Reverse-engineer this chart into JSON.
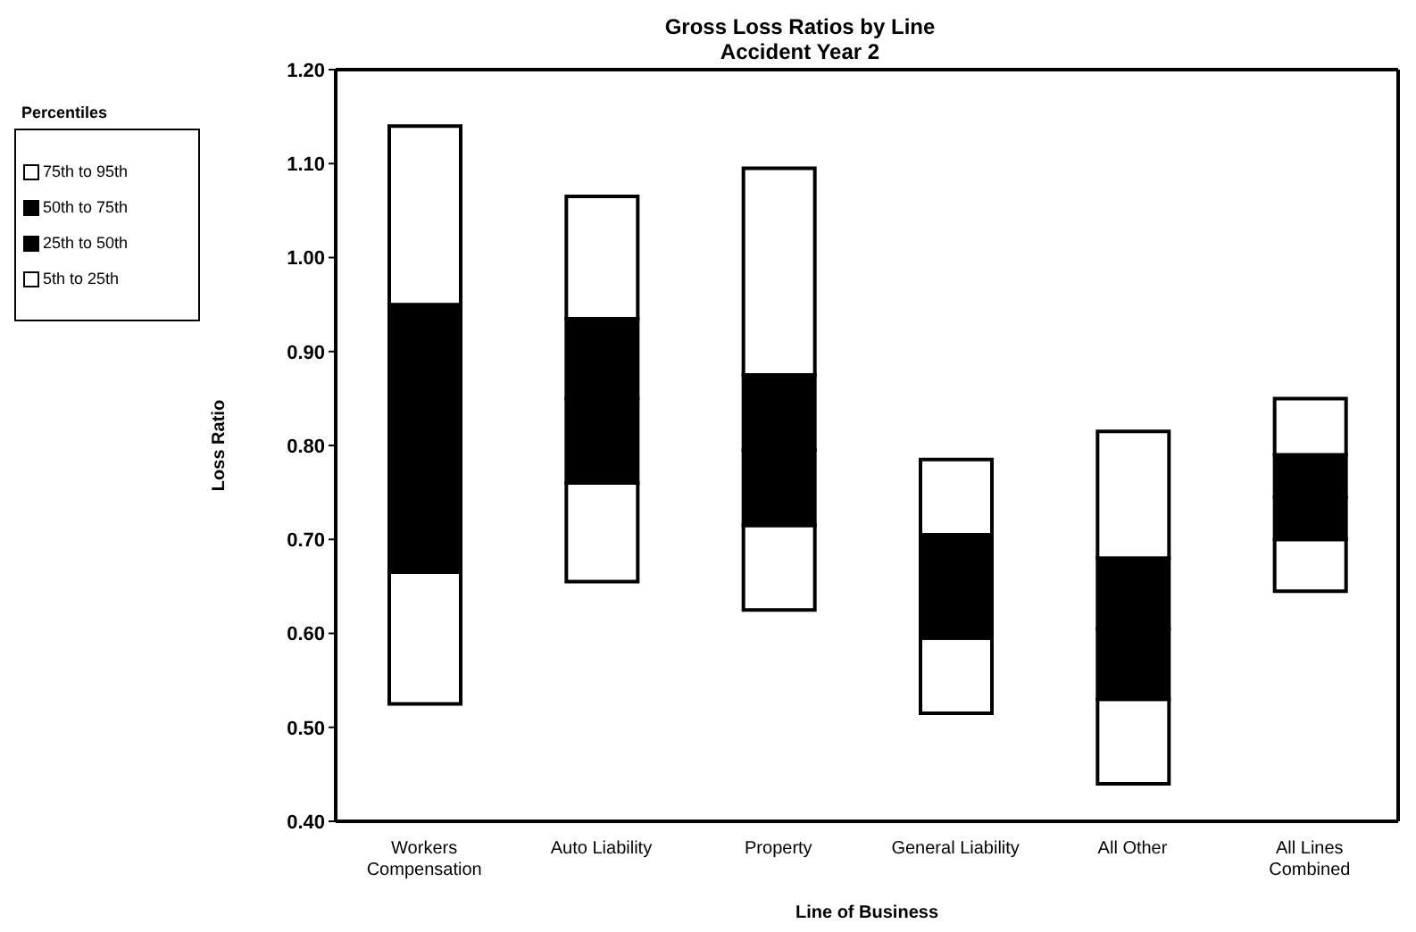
{
  "chart_data": {
    "type": "bar",
    "title": "Gross Loss Ratios by Line",
    "subtitle": "Accident Year 2",
    "xlabel": "Line of Business",
    "ylabel": "Loss Ratio",
    "legend_title": "Percentiles",
    "categories": [
      "Workers Compensation",
      "Auto Liability",
      "Property",
      "General Liability",
      "All Other",
      "All Lines Combined"
    ],
    "series": [
      {
        "name": "5th to 25th",
        "color": "#ffffff",
        "base": [
          0.525,
          0.655,
          0.625,
          0.515,
          0.44,
          0.645
        ],
        "values": [
          0.14,
          0.105,
          0.09,
          0.08,
          0.09,
          0.055
        ]
      },
      {
        "name": "25th to 50th",
        "color": "#000000",
        "base": [
          0.665,
          0.76,
          0.715,
          0.595,
          0.53,
          0.7
        ],
        "values": [
          0.145,
          0.09,
          0.08,
          0.055,
          0.075,
          0.045
        ]
      },
      {
        "name": "50th to 75th",
        "color": "#000000",
        "base": [
          0.81,
          0.85,
          0.795,
          0.65,
          0.605,
          0.745
        ],
        "values": [
          0.14,
          0.085,
          0.08,
          0.055,
          0.075,
          0.045
        ]
      },
      {
        "name": "75th to 95th",
        "color": "#ffffff",
        "base": [
          0.95,
          0.935,
          0.875,
          0.705,
          0.68,
          0.79
        ],
        "values": [
          0.19,
          0.13,
          0.22,
          0.08,
          0.135,
          0.06
        ]
      }
    ],
    "ylim": [
      0.4,
      1.2
    ],
    "yticks": [
      {
        "value": 0.4,
        "label": "0.40"
      },
      {
        "value": 0.5,
        "label": "0.50"
      },
      {
        "value": 0.6,
        "label": "0.60"
      },
      {
        "value": 0.7,
        "label": "0.70"
      },
      {
        "value": 0.8,
        "label": "0.80"
      },
      {
        "value": 0.9,
        "label": "0.90"
      },
      {
        "value": 1.0,
        "label": "1.00"
      },
      {
        "value": 1.1,
        "label": "1.10"
      },
      {
        "value": 1.2,
        "label": "1.20"
      }
    ],
    "grid": false,
    "legend": "left"
  }
}
